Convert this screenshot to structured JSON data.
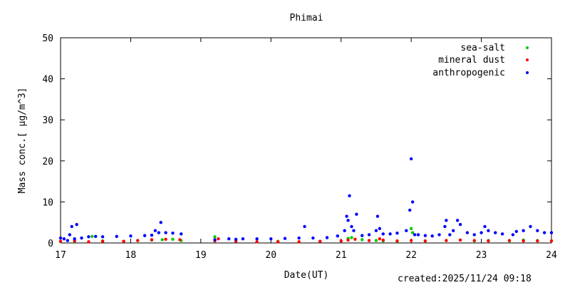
{
  "chart_data": {
    "type": "scatter",
    "title": "Phimai",
    "xlabel": "Date(UT)",
    "ylabel": "Mass conc.[ μg/m^3]",
    "xlim": [
      17,
      24
    ],
    "ylim": [
      0,
      50
    ],
    "x_ticks": [
      17,
      18,
      19,
      20,
      21,
      22,
      23,
      24
    ],
    "y_ticks": [
      0,
      10,
      20,
      30,
      40,
      50
    ],
    "grid": false,
    "legend_position": "top-right",
    "series": [
      {
        "name": "sea-salt",
        "color": "#00cc00",
        "x": [
          17.0,
          17.2,
          17.45,
          17.6,
          17.9,
          18.1,
          18.3,
          18.45,
          18.6,
          18.72,
          19.2,
          19.5,
          19.8,
          20.1,
          20.4,
          20.7,
          21.0,
          21.1,
          21.15,
          21.3,
          21.5,
          21.6,
          21.8,
          22.0,
          22.02,
          22.2,
          22.5,
          22.7,
          22.9,
          23.1,
          23.4,
          23.6,
          23.8,
          24.0
        ],
        "y": [
          0.3,
          0.4,
          1.6,
          0.5,
          0.4,
          0.6,
          0.7,
          0.8,
          0.9,
          0.6,
          1.5,
          0.4,
          0.3,
          0.4,
          0.3,
          0.4,
          0.5,
          1.1,
          1.3,
          0.8,
          0.6,
          0.5,
          0.4,
          3.5,
          2.5,
          0.5,
          0.6,
          0.7,
          0.5,
          0.6,
          0.5,
          0.7,
          0.6,
          0.5
        ]
      },
      {
        "name": "mineral dust",
        "color": "#ff0000",
        "x": [
          17.0,
          17.2,
          17.4,
          17.6,
          17.9,
          18.1,
          18.3,
          18.5,
          18.7,
          19.2,
          19.25,
          19.5,
          19.8,
          20.1,
          20.4,
          20.7,
          21.0,
          21.1,
          21.2,
          21.4,
          21.55,
          21.6,
          21.8,
          22.0,
          22.2,
          22.5,
          22.7,
          22.9,
          23.1,
          23.4,
          23.6,
          23.8,
          24.0
        ],
        "y": [
          0.4,
          0.5,
          0.3,
          0.4,
          0.4,
          0.6,
          0.8,
          0.9,
          0.8,
          0.5,
          1.0,
          0.4,
          0.3,
          0.3,
          0.3,
          0.4,
          0.5,
          0.7,
          0.9,
          0.6,
          1.0,
          0.7,
          0.5,
          0.6,
          0.5,
          0.6,
          0.7,
          0.6,
          0.5,
          0.6,
          0.5,
          0.5,
          0.5
        ]
      },
      {
        "name": "anthropogenic",
        "color": "#0000ff",
        "x": [
          17.0,
          17.05,
          17.1,
          17.13,
          17.16,
          17.2,
          17.23,
          17.3,
          17.4,
          17.5,
          17.6,
          17.8,
          18.0,
          18.2,
          18.3,
          18.35,
          18.4,
          18.43,
          18.5,
          18.6,
          18.72,
          19.2,
          19.4,
          19.5,
          19.6,
          19.8,
          20.0,
          20.2,
          20.4,
          20.48,
          20.6,
          20.8,
          20.95,
          21.05,
          21.08,
          21.1,
          21.12,
          21.15,
          21.18,
          21.22,
          21.3,
          21.4,
          21.5,
          21.52,
          21.55,
          21.6,
          21.7,
          21.8,
          21.93,
          21.98,
          22.0,
          22.02,
          22.05,
          22.1,
          22.2,
          22.3,
          22.4,
          22.48,
          22.5,
          22.55,
          22.6,
          22.66,
          22.7,
          22.8,
          22.9,
          23.0,
          23.05,
          23.1,
          23.2,
          23.3,
          23.45,
          23.5,
          23.6,
          23.7,
          23.8,
          23.9,
          24.0
        ],
        "y": [
          1.2,
          1.0,
          0.6,
          2.0,
          4.0,
          1.0,
          4.5,
          1.2,
          1.5,
          1.6,
          1.5,
          1.6,
          1.7,
          1.8,
          1.9,
          3.0,
          2.5,
          5.0,
          2.5,
          2.4,
          2.2,
          0.8,
          1.0,
          0.9,
          1.0,
          1.0,
          1.0,
          1.1,
          1.2,
          4.0,
          1.2,
          1.3,
          1.7,
          3.0,
          6.5,
          5.5,
          11.5,
          4.0,
          3.0,
          7.0,
          1.8,
          2.0,
          3.0,
          6.5,
          3.5,
          2.2,
          2.2,
          2.4,
          3.0,
          8.0,
          20.5,
          10.0,
          2.0,
          2.0,
          1.8,
          1.7,
          2.0,
          4.0,
          5.5,
          2.0,
          3.0,
          5.5,
          4.5,
          2.5,
          2.0,
          2.5,
          4.0,
          3.0,
          2.5,
          2.2,
          2.0,
          2.8,
          3.0,
          4.0,
          3.0,
          2.5,
          2.5
        ]
      }
    ]
  },
  "created_text": "created:2025/11/24 09:18"
}
